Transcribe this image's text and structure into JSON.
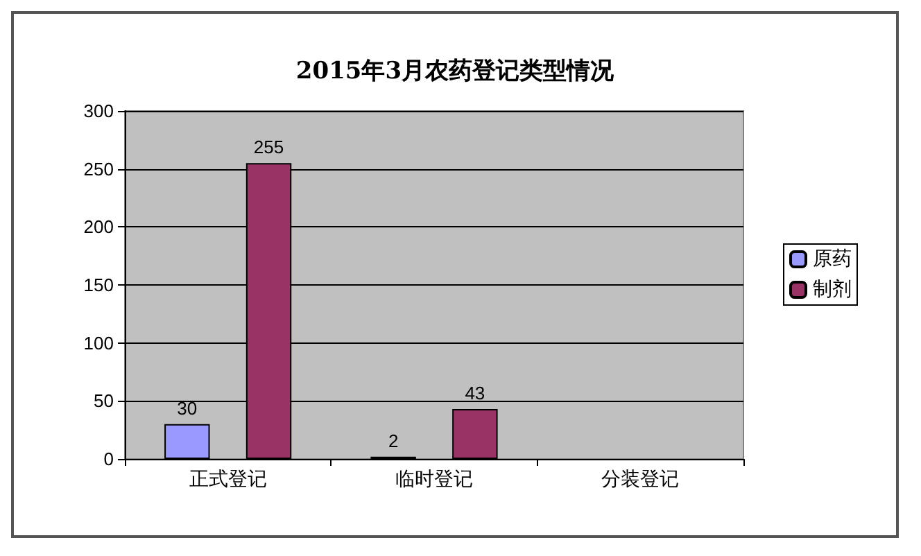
{
  "chart_data": {
    "type": "bar",
    "title": "2015年3月农药登记类型情况",
    "categories": [
      "正式登记",
      "临时登记",
      "分装登记"
    ],
    "series": [
      {
        "name": "原药",
        "color": "#9999ff",
        "values": [
          30,
          2,
          null
        ],
        "value_labels": [
          "30",
          "2",
          null
        ]
      },
      {
        "name": "制剂",
        "color": "#993366",
        "values": [
          255,
          43,
          null
        ],
        "value_labels": [
          "255",
          "43",
          null
        ]
      }
    ],
    "ylim": [
      0,
      300
    ],
    "yticks": [
      0,
      50,
      100,
      150,
      200,
      250,
      300
    ],
    "grid": "y",
    "legend": "right"
  }
}
